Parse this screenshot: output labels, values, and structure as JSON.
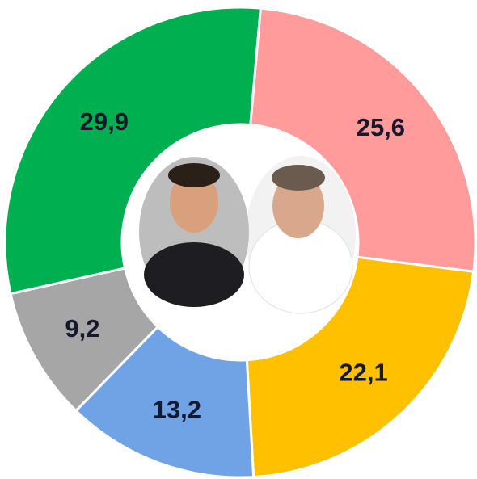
{
  "chart_data": {
    "type": "donut",
    "categories": [
      null,
      null,
      null,
      null,
      null
    ],
    "values": [
      25.6,
      22.1,
      13.2,
      9.2,
      29.9
    ],
    "value_labels": [
      "25,6",
      "22,1",
      "13,2",
      "9,2",
      "29,9"
    ],
    "colors": [
      "#ff9b9b",
      "#ffc000",
      "#70a2e6",
      "#a6a6a6",
      "#00b050"
    ]
  }
}
